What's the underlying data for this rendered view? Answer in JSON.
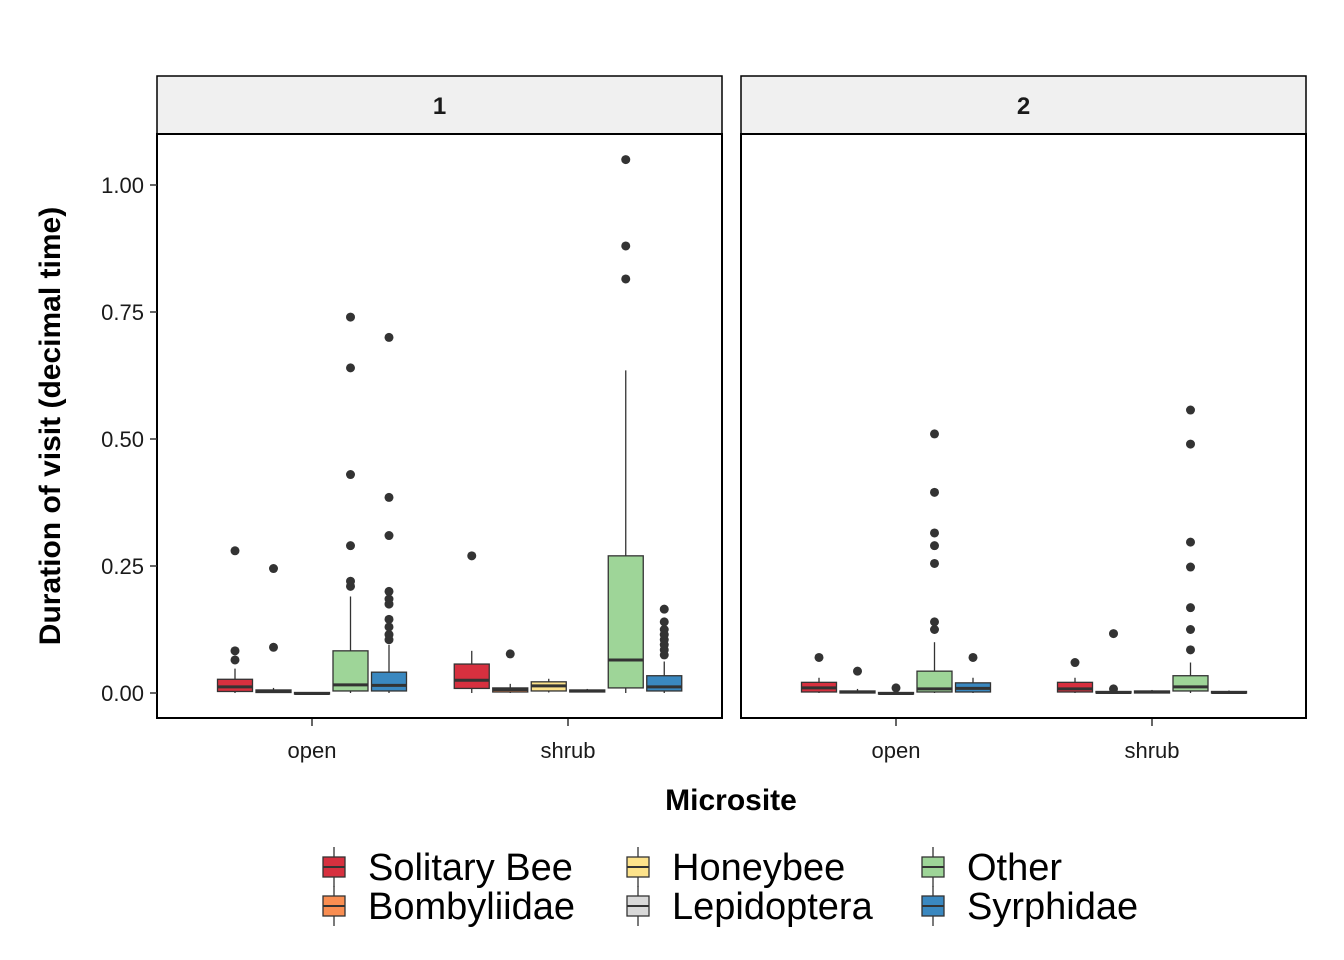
{
  "chart_data": {
    "type": "boxplot",
    "xlabel": "Microsite",
    "ylabel": "Duration of visit (decimal time)",
    "ylim": [
      -0.05,
      1.1
    ],
    "yticks": [
      "0.00",
      "0.25",
      "0.50",
      "0.75",
      "1.00"
    ],
    "ytick_values": [
      0,
      0.25,
      0.5,
      0.75,
      1.0
    ],
    "categories": [
      "open",
      "shrub"
    ],
    "grid": false,
    "legend_position": "bottom",
    "series": [
      {
        "name": "Solitary Bee",
        "color": "#d7303f"
      },
      {
        "name": "Bombyliidae",
        "color": "#f98e52"
      },
      {
        "name": "Honeybee",
        "color": "#fde38b"
      },
      {
        "name": "Lepidoptera",
        "color": "#d9d9d9"
      },
      {
        "name": "Other",
        "color": "#9ed598"
      },
      {
        "name": "Syrphidae",
        "color": "#3a88c0"
      }
    ],
    "panels": [
      {
        "label": "1",
        "groups": [
          {
            "category": "open",
            "boxes": [
              {
                "series": "Solitary Bee",
                "q1": 0.003,
                "median": 0.012,
                "q3": 0.027,
                "whisker_low": 0.0,
                "whisker_high": 0.048,
                "outliers": [
                  0.065,
                  0.083,
                  0.28
                ]
              },
              {
                "series": "Bombyliidae",
                "q1": 0.001,
                "median": 0.003,
                "q3": 0.006,
                "whisker_low": 0.0,
                "whisker_high": 0.01,
                "outliers": [
                  0.09,
                  0.245
                ]
              },
              {
                "series": "Lepidoptera",
                "q1": -0.002,
                "median": -0.001,
                "q3": 0.001,
                "whisker_low": -0.002,
                "whisker_high": 0.002,
                "outliers": []
              },
              {
                "series": "Other",
                "q1": 0.004,
                "median": 0.016,
                "q3": 0.083,
                "whisker_low": 0.0,
                "whisker_high": 0.19,
                "outliers": [
                  0.21,
                  0.22,
                  0.29,
                  0.43,
                  0.64,
                  0.74
                ]
              },
              {
                "series": "Syrphidae",
                "q1": 0.004,
                "median": 0.015,
                "q3": 0.041,
                "whisker_low": 0.0,
                "whisker_high": 0.095,
                "outliers": [
                  0.105,
                  0.115,
                  0.13,
                  0.145,
                  0.175,
                  0.185,
                  0.2,
                  0.31,
                  0.385,
                  0.7
                ]
              }
            ]
          },
          {
            "category": "shrub",
            "boxes": [
              {
                "series": "Solitary Bee",
                "q1": 0.009,
                "median": 0.025,
                "q3": 0.057,
                "whisker_low": 0.0,
                "whisker_high": 0.083,
                "outliers": [
                  0.27
                ]
              },
              {
                "series": "Bombyliidae",
                "q1": 0.002,
                "median": 0.007,
                "q3": 0.01,
                "whisker_low": 0.0,
                "whisker_high": 0.018,
                "outliers": [
                  0.077
                ]
              },
              {
                "series": "Honeybee",
                "q1": 0.004,
                "median": 0.014,
                "q3": 0.022,
                "whisker_low": 0.001,
                "whisker_high": 0.028,
                "outliers": []
              },
              {
                "series": "Lepidoptera",
                "q1": 0.002,
                "median": 0.004,
                "q3": 0.006,
                "whisker_low": 0.001,
                "whisker_high": 0.008,
                "outliers": []
              },
              {
                "series": "Other",
                "q1": 0.01,
                "median": 0.065,
                "q3": 0.27,
                "whisker_low": 0.0,
                "whisker_high": 0.635,
                "outliers": [
                  0.815,
                  0.88,
                  1.05
                ]
              },
              {
                "series": "Syrphidae",
                "q1": 0.004,
                "median": 0.012,
                "q3": 0.034,
                "whisker_low": 0.0,
                "whisker_high": 0.062,
                "outliers": [
                  0.075,
                  0.085,
                  0.095,
                  0.105,
                  0.115,
                  0.125,
                  0.14,
                  0.165
                ]
              }
            ]
          }
        ]
      },
      {
        "label": "2",
        "groups": [
          {
            "category": "open",
            "boxes": [
              {
                "series": "Solitary Bee",
                "q1": 0.002,
                "median": 0.01,
                "q3": 0.021,
                "whisker_low": 0.0,
                "whisker_high": 0.03,
                "outliers": [
                  0.07
                ]
              },
              {
                "series": "Bombyliidae",
                "q1": 0.0,
                "median": 0.002,
                "q3": 0.004,
                "whisker_low": 0.0,
                "whisker_high": 0.008,
                "outliers": [
                  0.043
                ]
              },
              {
                "series": "Lepidoptera",
                "q1": -0.002,
                "median": -0.001,
                "q3": 0.001,
                "whisker_low": -0.002,
                "whisker_high": 0.003,
                "outliers": [
                  0.01
                ]
              },
              {
                "series": "Other",
                "q1": 0.002,
                "median": 0.008,
                "q3": 0.043,
                "whisker_low": 0.0,
                "whisker_high": 0.1,
                "outliers": [
                  0.125,
                  0.14,
                  0.255,
                  0.29,
                  0.315,
                  0.395,
                  0.51
                ]
              },
              {
                "series": "Syrphidae",
                "q1": 0.002,
                "median": 0.009,
                "q3": 0.02,
                "whisker_low": 0.0,
                "whisker_high": 0.03,
                "outliers": [
                  0.07
                ]
              }
            ]
          },
          {
            "category": "shrub",
            "boxes": [
              {
                "series": "Solitary Bee",
                "q1": 0.002,
                "median": 0.008,
                "q3": 0.021,
                "whisker_low": 0.0,
                "whisker_high": 0.03,
                "outliers": [
                  0.06
                ]
              },
              {
                "series": "Bombyliidae",
                "q1": 0.0,
                "median": 0.001,
                "q3": 0.003,
                "whisker_low": 0.0,
                "whisker_high": 0.004,
                "outliers": [
                  0.008,
                  0.117
                ]
              },
              {
                "series": "Lepidoptera",
                "q1": 0.0,
                "median": 0.002,
                "q3": 0.004,
                "whisker_low": 0.0,
                "whisker_high": 0.006,
                "outliers": []
              },
              {
                "series": "Other",
                "q1": 0.004,
                "median": 0.012,
                "q3": 0.034,
                "whisker_low": 0.0,
                "whisker_high": 0.06,
                "outliers": [
                  0.085,
                  0.125,
                  0.168,
                  0.248,
                  0.297,
                  0.49,
                  0.557
                ]
              },
              {
                "series": "Syrphidae",
                "q1": 0.0,
                "median": 0.001,
                "q3": 0.003,
                "whisker_low": 0.0,
                "whisker_high": 0.005,
                "outliers": []
              }
            ]
          }
        ]
      }
    ]
  }
}
